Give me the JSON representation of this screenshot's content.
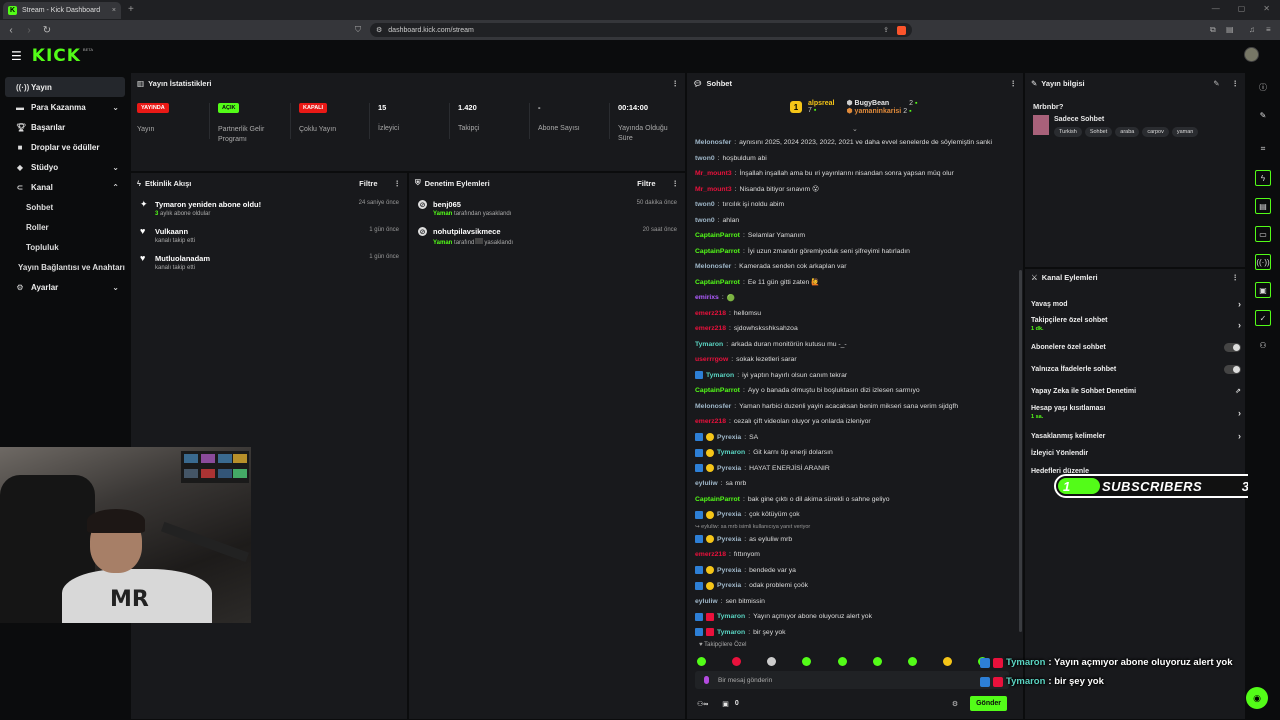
{
  "browser": {
    "tab_title": "Stream - Kick Dashboard",
    "tab_close": "×",
    "new_tab": "+",
    "url": "dashboard.kick.com/stream"
  },
  "app": {
    "logo": "KICK",
    "logo_badge": "BETA",
    "accent_color": "#53fc18",
    "danger_color": "#e91916"
  },
  "sidebar": {
    "items": [
      {
        "label": "Yayın",
        "icon": "broadcast-icon"
      },
      {
        "label": "Para Kazanma",
        "icon": "money-icon"
      },
      {
        "label": "Başarılar",
        "icon": "trophy-icon"
      },
      {
        "label": "Droplar ve ödüller",
        "icon": "gift-icon"
      },
      {
        "label": "Stüdyo",
        "icon": "palette-icon"
      },
      {
        "label": "Kanal",
        "icon": "user-icon"
      },
      {
        "label": "Ayarlar",
        "icon": "gear-icon"
      }
    ],
    "subitems": [
      "Sohbet",
      "Roller",
      "Topluluk"
    ],
    "connection": "Yayın Bağlantısı ve Anahtarı"
  },
  "stats": {
    "title": "Yayın İstatistikleri",
    "items": [
      {
        "badge": "YAYINDA",
        "label": "Yayın"
      },
      {
        "badge": "AÇIK",
        "label": "Partnerlik Gelir Programı"
      },
      {
        "badge": "KAPALI",
        "label": "Çoklu Yayın"
      },
      {
        "value": "15",
        "label": "İzleyici"
      },
      {
        "value": "1.420",
        "label": "Takipçi"
      },
      {
        "value": "-",
        "label": "Abone Sayısı"
      },
      {
        "value": "00:14:00",
        "label": "Yayında Olduğu Süre"
      }
    ]
  },
  "activity": {
    "title": "Etkinlik Akışı",
    "filter": "Filtre",
    "items": [
      {
        "title": "Tymaron yeniden abone oldu!",
        "sub_count": "3",
        "sub": "aylık abone oldular",
        "time": "24 saniye önce"
      },
      {
        "title": "Vulkaann",
        "sub": "kanalı takip etti",
        "time": "1 gün önce"
      },
      {
        "title": "Mutluolanadam",
        "sub": "kanalı takip etti",
        "time": "1 gün önce"
      }
    ]
  },
  "moderation": {
    "title": "Denetim Eylemleri",
    "filter": "Filtre",
    "items": [
      {
        "title": "benj065",
        "by": "Yaman",
        "action": "tarafından yasaklandı",
        "time": "50 dakika önce"
      },
      {
        "title": "nohutpilavsikmece",
        "by": "Yaman",
        "action": "tarafınd",
        "action2": "yasaklandı",
        "time": "20 saat önce"
      }
    ]
  },
  "chat": {
    "title": "Sohbet",
    "leaderboard": {
      "rank1": "1",
      "user1": "alpsreal",
      "user1_count": "7",
      "user2": "BugyBean",
      "user2_count": "2",
      "user3": "yamaninkarisi",
      "user3_count": "2"
    },
    "messages": [
      {
        "user": "Melonosfer",
        "color": "#9fb7c9",
        "text": "aynısını 2025, 2024 2023, 2022, 2021 ve daha evvel senelerde de söylemiştin sanki"
      },
      {
        "user": "twon0",
        "color": "#9fb7c9",
        "text": "hoşbuldum abi"
      },
      {
        "user": "Mr_mount3",
        "color": "#e9113c",
        "text": "İnşallah inşallah ama bu ıri yayınlarını nisandan sonra yapsan müq olur"
      },
      {
        "user": "Mr_mount3",
        "color": "#e9113c",
        "text": "Nisanda bitiyor sınavım 😮"
      },
      {
        "user": "twon0",
        "color": "#9fb7c9",
        "text": "tırcılık işi noldu abim"
      },
      {
        "user": "twon0",
        "color": "#9fb7c9",
        "text": "ahlan"
      },
      {
        "user": "CaptainParrot",
        "color": "#53fc18",
        "text": "Selamlar Yamanım"
      },
      {
        "user": "CaptainParrot",
        "color": "#53fc18",
        "text": "İyi uzun zmandır göremiyoduk seni şifreyimi hatırladın"
      },
      {
        "user": "Melonosfer",
        "color": "#9fb7c9",
        "text": "Kamerada senden cok arkaplan var"
      },
      {
        "user": "CaptainParrot",
        "color": "#53fc18",
        "text": "Ee 11 gün gitti zaten 🙋"
      },
      {
        "user": "emirixs",
        "color": "#b05cff",
        "text": "🟢"
      },
      {
        "user": "emerz218",
        "color": "#e9113c",
        "text": "hellomsu"
      },
      {
        "user": "emerz218",
        "color": "#e9113c",
        "text": "sjdowhsksshksahzoa"
      },
      {
        "user": "Tymaron",
        "color": "#5ad4c2",
        "text": "arkada duran monitörün kutusu mu -_-"
      },
      {
        "user": "userrrgow",
        "color": "#e9113c",
        "text": "sokak lezetleri sarar"
      },
      {
        "user": "Tymaron",
        "color": "#5ad4c2",
        "text": "iyi yaptın hayırlı olsun canım tekrar",
        "badges": [
          "b"
        ]
      },
      {
        "user": "CaptainParrot",
        "color": "#53fc18",
        "text": "Ayy o banada olmuştu bi boşluktasın dizi izlesen sarmıyo"
      },
      {
        "user": "Melonosfer",
        "color": "#9fb7c9",
        "text": "Yaman harbici duzenli yayin acacaksan benim mikseri sana verim sijdgfh"
      },
      {
        "user": "emerz218",
        "color": "#e9113c",
        "text": "cezalı çift videoları oluyor ya onlarda izleniyor"
      },
      {
        "user": "Pyrexia",
        "color": "#9fb7c9",
        "text": "SA",
        "badges": [
          "b",
          "y"
        ]
      },
      {
        "user": "Tymaron",
        "color": "#5ad4c2",
        "text": "Git karnı öp enerji dolarsın",
        "badges": [
          "b",
          "y"
        ]
      },
      {
        "user": "Pyrexia",
        "color": "#9fb7c9",
        "text": "HAYAT ENERJİSİ ARANIR",
        "badges": [
          "b",
          "y"
        ]
      },
      {
        "user": "eyluliw",
        "color": "#9fb7c9",
        "text": "sa mrb"
      },
      {
        "user": "CaptainParrot",
        "color": "#53fc18",
        "text": "bak gine çıktı o dil akima sürekli o sahne geliyo"
      },
      {
        "user": "Pyrexia",
        "color": "#9fb7c9",
        "text": "çok kötüyüm çok",
        "badges": [
          "b",
          "y"
        ]
      },
      {
        "reply": "↪ eyluliw: sa mrb isimli kullanıcıya yanıt veriyor"
      },
      {
        "user": "Pyrexia",
        "color": "#9fb7c9",
        "text": "as eyluliw mrb",
        "badges": [
          "b",
          "y"
        ]
      },
      {
        "user": "emerz218",
        "color": "#e9113c",
        "text": "fıttınyom"
      },
      {
        "user": "Pyrexia",
        "color": "#9fb7c9",
        "text": "bendede var ya",
        "badges": [
          "b",
          "y"
        ]
      },
      {
        "user": "Pyrexia",
        "color": "#9fb7c9",
        "text": "odak problemi çoök",
        "badges": [
          "b",
          "y"
        ]
      },
      {
        "user": "eyluliw",
        "color": "#9fb7c9",
        "text": "sen bitmissin"
      },
      {
        "user": "Tymaron",
        "color": "#5ad4c2",
        "text": "Yayın açmıyor abone oluyoruz alert yok",
        "badges": [
          "b",
          "r"
        ]
      },
      {
        "user": "Tymaron",
        "color": "#5ad4c2",
        "text": "bir şey yok",
        "badges": [
          "b",
          "r"
        ]
      }
    ],
    "followers_only": "♥ Takipçilere Özel",
    "input_placeholder": "Bir mesaj gönderin",
    "footer_count": "0",
    "send": "Gönder"
  },
  "stream_info": {
    "title": "Yayın bilgisi",
    "stream_title": "Mrbnbr?",
    "category": "Sadece Sohbet",
    "tags": [
      "Turkish",
      "Sohbet",
      "araba",
      "carpov",
      "yaman"
    ]
  },
  "channel_actions": {
    "title": "Kanal Eylemleri",
    "items": [
      {
        "label": "Yavaş mod",
        "kind": "arrow"
      },
      {
        "label": "Takipçilere özel sohbet",
        "sub": "1 dk.",
        "kind": "arrow"
      },
      {
        "label": "Abonelere özel sohbet",
        "kind": "toggle"
      },
      {
        "label": "Yalnızca İfadelerle sohbet",
        "kind": "toggle"
      },
      {
        "label": "Yapay Zeka ile Sohbet Denetimi",
        "kind": "link"
      },
      {
        "label": "Hesap yaşı kısıtlaması",
        "sub": "1 sa.",
        "kind": "arrow"
      },
      {
        "label": "Yasaklanmış kelimeler",
        "kind": "arrow"
      },
      {
        "label": "İzleyici Yönlendir",
        "kind": "none"
      },
      {
        "label": "Hedefleri düzenle",
        "kind": "none"
      }
    ]
  },
  "overlay": {
    "subs_current": "1",
    "subs_label": "SUBSCRIBERS",
    "subs_goal": "3",
    "line1_user": "Tymaron",
    "line1_text": ": Yayın açmıyor abone oluyoruz alert yok",
    "line2_user": "Tymaron",
    "line2_text": ": bir şey yok"
  }
}
